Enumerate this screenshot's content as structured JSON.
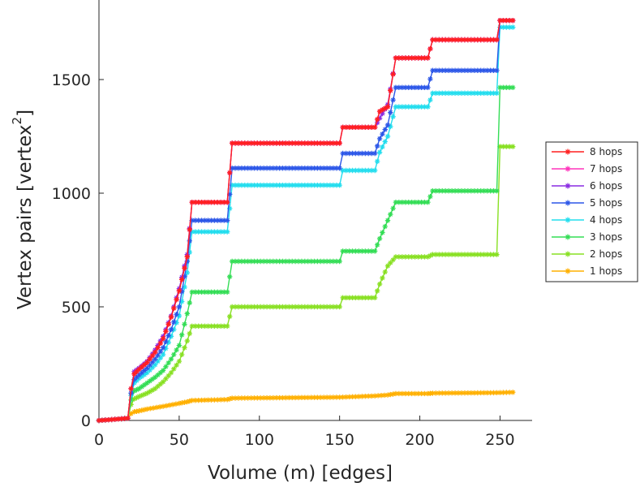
{
  "chart_data": {
    "type": "line",
    "xlabel": "Volume (m) [edges]",
    "ylabel": "Vertex pairs [vertex",
    "ylabel_superscript": "2",
    "ylabel_close": "]",
    "xlim": [
      0,
      270
    ],
    "ylim": [
      0,
      1850
    ],
    "xticks": [
      0,
      50,
      100,
      150,
      200,
      250
    ],
    "yticks": [
      0,
      500,
      1000,
      1500
    ],
    "legend_position": "right",
    "marker": "asterisk",
    "series": [
      {
        "name": "8 hops",
        "color": "#ff1f1f",
        "points": [
          [
            0,
            0
          ],
          [
            10,
            5
          ],
          [
            18,
            10
          ],
          [
            20,
            140
          ],
          [
            22,
            205
          ],
          [
            25,
            225
          ],
          [
            30,
            255
          ],
          [
            35,
            300
          ],
          [
            40,
            360
          ],
          [
            45,
            455
          ],
          [
            50,
            570
          ],
          [
            55,
            720
          ],
          [
            58,
            960
          ],
          [
            80,
            960
          ],
          [
            83,
            1220
          ],
          [
            150,
            1220
          ],
          [
            152,
            1290
          ],
          [
            172,
            1290
          ],
          [
            175,
            1360
          ],
          [
            180,
            1380
          ],
          [
            185,
            1595
          ],
          [
            205,
            1595
          ],
          [
            208,
            1675
          ],
          [
            248,
            1675
          ],
          [
            250,
            1760
          ],
          [
            258,
            1760
          ]
        ]
      },
      {
        "name": "7 hops",
        "color": "#ff33bb",
        "points": [
          [
            0,
            0
          ],
          [
            10,
            5
          ],
          [
            18,
            10
          ],
          [
            20,
            140
          ],
          [
            22,
            205
          ],
          [
            25,
            225
          ],
          [
            30,
            255
          ],
          [
            35,
            300
          ],
          [
            40,
            360
          ],
          [
            45,
            455
          ],
          [
            50,
            570
          ],
          [
            55,
            720
          ],
          [
            58,
            960
          ],
          [
            80,
            960
          ],
          [
            83,
            1220
          ],
          [
            150,
            1220
          ],
          [
            152,
            1290
          ],
          [
            172,
            1290
          ],
          [
            175,
            1360
          ],
          [
            180,
            1380
          ],
          [
            185,
            1595
          ],
          [
            205,
            1595
          ],
          [
            208,
            1675
          ],
          [
            248,
            1675
          ],
          [
            250,
            1760
          ],
          [
            258,
            1760
          ]
        ]
      },
      {
        "name": "6 hops",
        "color": "#8a2be2",
        "points": [
          [
            0,
            0
          ],
          [
            10,
            5
          ],
          [
            18,
            10
          ],
          [
            20,
            140
          ],
          [
            22,
            215
          ],
          [
            25,
            230
          ],
          [
            30,
            260
          ],
          [
            35,
            310
          ],
          [
            40,
            370
          ],
          [
            45,
            460
          ],
          [
            50,
            580
          ],
          [
            55,
            730
          ],
          [
            58,
            960
          ],
          [
            80,
            960
          ],
          [
            83,
            1220
          ],
          [
            150,
            1220
          ],
          [
            152,
            1290
          ],
          [
            172,
            1290
          ],
          [
            175,
            1330
          ],
          [
            180,
            1390
          ],
          [
            185,
            1595
          ],
          [
            205,
            1595
          ],
          [
            208,
            1675
          ],
          [
            248,
            1675
          ],
          [
            250,
            1760
          ],
          [
            258,
            1760
          ]
        ]
      },
      {
        "name": "5 hops",
        "color": "#2b56e8",
        "points": [
          [
            0,
            0
          ],
          [
            10,
            5
          ],
          [
            18,
            10
          ],
          [
            20,
            120
          ],
          [
            22,
            180
          ],
          [
            25,
            200
          ],
          [
            30,
            230
          ],
          [
            35,
            270
          ],
          [
            40,
            320
          ],
          [
            45,
            400
          ],
          [
            50,
            500
          ],
          [
            55,
            700
          ],
          [
            58,
            880
          ],
          [
            80,
            880
          ],
          [
            83,
            1110
          ],
          [
            150,
            1110
          ],
          [
            152,
            1175
          ],
          [
            172,
            1175
          ],
          [
            175,
            1240
          ],
          [
            180,
            1300
          ],
          [
            185,
            1465
          ],
          [
            205,
            1465
          ],
          [
            208,
            1540
          ],
          [
            248,
            1540
          ],
          [
            250,
            1760
          ],
          [
            258,
            1760
          ]
        ]
      },
      {
        "name": "4 hops",
        "color": "#22ddee",
        "points": [
          [
            0,
            0
          ],
          [
            10,
            5
          ],
          [
            18,
            10
          ],
          [
            20,
            110
          ],
          [
            22,
            165
          ],
          [
            25,
            185
          ],
          [
            30,
            210
          ],
          [
            35,
            245
          ],
          [
            40,
            290
          ],
          [
            45,
            370
          ],
          [
            50,
            460
          ],
          [
            55,
            650
          ],
          [
            58,
            830
          ],
          [
            80,
            830
          ],
          [
            83,
            1035
          ],
          [
            150,
            1035
          ],
          [
            152,
            1100
          ],
          [
            172,
            1100
          ],
          [
            175,
            1180
          ],
          [
            180,
            1250
          ],
          [
            185,
            1380
          ],
          [
            205,
            1380
          ],
          [
            208,
            1440
          ],
          [
            248,
            1440
          ],
          [
            250,
            1730
          ],
          [
            258,
            1730
          ]
        ]
      },
      {
        "name": "3 hops",
        "color": "#33dd55",
        "points": [
          [
            0,
            0
          ],
          [
            10,
            5
          ],
          [
            18,
            10
          ],
          [
            20,
            90
          ],
          [
            22,
            130
          ],
          [
            25,
            140
          ],
          [
            30,
            165
          ],
          [
            35,
            190
          ],
          [
            40,
            220
          ],
          [
            45,
            270
          ],
          [
            50,
            330
          ],
          [
            55,
            470
          ],
          [
            58,
            565
          ],
          [
            80,
            565
          ],
          [
            83,
            700
          ],
          [
            150,
            700
          ],
          [
            152,
            745
          ],
          [
            172,
            745
          ],
          [
            175,
            800
          ],
          [
            180,
            880
          ],
          [
            185,
            960
          ],
          [
            205,
            960
          ],
          [
            208,
            1010
          ],
          [
            248,
            1010
          ],
          [
            250,
            1465
          ],
          [
            258,
            1465
          ]
        ]
      },
      {
        "name": "2 hops",
        "color": "#88e022",
        "points": [
          [
            0,
            0
          ],
          [
            10,
            5
          ],
          [
            18,
            10
          ],
          [
            20,
            70
          ],
          [
            22,
            95
          ],
          [
            25,
            105
          ],
          [
            30,
            120
          ],
          [
            35,
            140
          ],
          [
            40,
            170
          ],
          [
            45,
            210
          ],
          [
            50,
            260
          ],
          [
            55,
            350
          ],
          [
            58,
            415
          ],
          [
            80,
            415
          ],
          [
            83,
            500
          ],
          [
            150,
            500
          ],
          [
            152,
            540
          ],
          [
            172,
            540
          ],
          [
            175,
            600
          ],
          [
            180,
            680
          ],
          [
            185,
            720
          ],
          [
            205,
            720
          ],
          [
            208,
            730
          ],
          [
            248,
            730
          ],
          [
            250,
            1205
          ],
          [
            258,
            1205
          ]
        ]
      },
      {
        "name": "1 hops",
        "color": "#ffb000",
        "points": [
          [
            0,
            0
          ],
          [
            10,
            5
          ],
          [
            18,
            10
          ],
          [
            20,
            30
          ],
          [
            22,
            38
          ],
          [
            25,
            42
          ],
          [
            30,
            50
          ],
          [
            40,
            62
          ],
          [
            50,
            75
          ],
          [
            55,
            82
          ],
          [
            58,
            88
          ],
          [
            80,
            92
          ],
          [
            83,
            98
          ],
          [
            150,
            102
          ],
          [
            172,
            108
          ],
          [
            180,
            112
          ],
          [
            185,
            118
          ],
          [
            205,
            118
          ],
          [
            208,
            120
          ],
          [
            248,
            122
          ],
          [
            258,
            124
          ]
        ]
      }
    ]
  }
}
